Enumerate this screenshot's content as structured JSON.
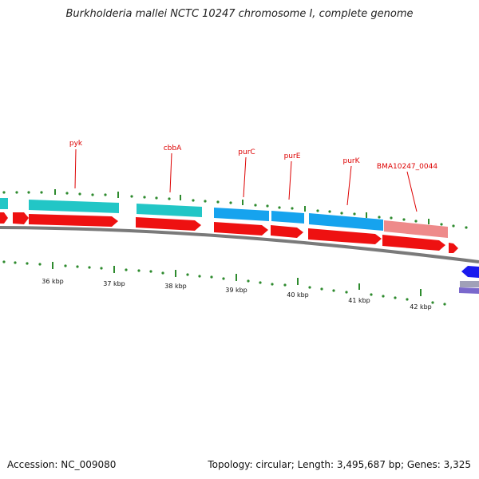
{
  "title": "Burkholderia mallei NCTC 10247 chromosome I, complete genome",
  "accession": "Accession: NC_009080",
  "summary": "Topology: circular; Length: 3,495,687 bp; Genes: 3,325",
  "colors": {
    "backbone": "#7a7a7a",
    "tick": "#2e8b2e",
    "cds_red": "#ee1111",
    "gene_teal": "#22c6c6",
    "gene_blue": "#16a3ee",
    "pseudo_pink": "#ee8a8a",
    "label_red": "#dd0000",
    "rrna_blue": "#1a1aee",
    "gray_band": "#a0a0b8",
    "purple_band": "#7a68cc"
  },
  "scale_labels": [
    "36 kbp",
    "37 kbp",
    "38 kbp",
    "39 kbp",
    "40 kbp",
    "41 kbp",
    "42 kbp"
  ],
  "gene_labels": [
    "pyk",
    "cbbA",
    "purC",
    "purE",
    "purK",
    "BMA10247_0044"
  ]
}
